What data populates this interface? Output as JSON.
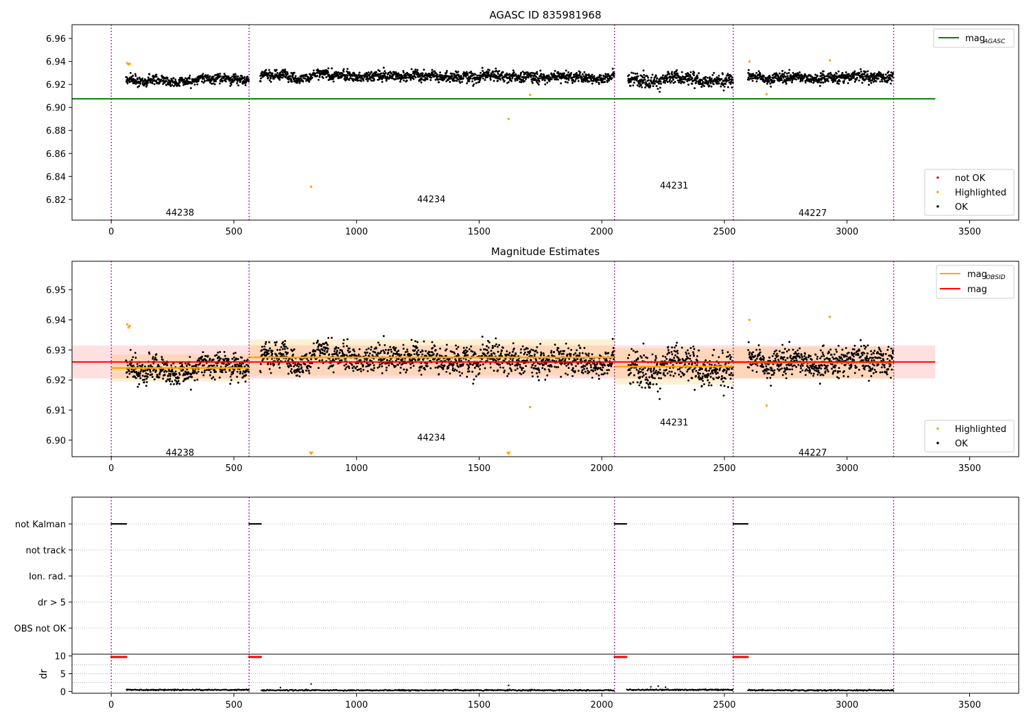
{
  "figure": {
    "width": 1500,
    "height": 1050
  },
  "chart_data": [
    {
      "id": "panel1",
      "type": "scatter",
      "title": "AGASC ID 835981968",
      "xlim": [
        -160,
        3700
      ],
      "ylim": [
        6.802,
        6.972
      ],
      "xticks": [
        0,
        500,
        1000,
        1500,
        2000,
        2500,
        3000,
        3500
      ],
      "yticks": [
        6.82,
        6.84,
        6.86,
        6.88,
        6.9,
        6.92,
        6.94,
        6.96
      ],
      "ytick_decimals": 2,
      "obsid_boundaries": [
        0,
        562,
        2052,
        2536,
        3190
      ],
      "obsids": [
        {
          "label": "44238",
          "x": 280,
          "y": 6.809,
          "start": 0,
          "end": 562,
          "level": 6.9245,
          "amp": 0.0032,
          "gap": 60
        },
        {
          "label": "44234",
          "x": 1305,
          "y": 6.8205,
          "start": 562,
          "end": 2052,
          "level": 6.9275,
          "amp": 0.0035,
          "gap": 45
        },
        {
          "label": "44231",
          "x": 2295,
          "y": 6.8325,
          "start": 2052,
          "end": 2536,
          "level": 6.9245,
          "amp": 0.0045,
          "gap": 55
        },
        {
          "label": "44227",
          "x": 2860,
          "y": 6.8085,
          "start": 2536,
          "end": 3190,
          "level": 6.9265,
          "amp": 0.0035,
          "gap": 60
        }
      ],
      "ref_lines": [
        {
          "name": "mag_AGASC",
          "y": 6.9075,
          "x0": -160,
          "x1": 3360,
          "color": "#008000"
        }
      ],
      "highlighted": [
        {
          "x": 65,
          "y": 6.9385
        },
        {
          "x": 70,
          "y": 6.9375
        },
        {
          "x": 75,
          "y": 6.938
        },
        {
          "x": 815,
          "y": 6.831
        },
        {
          "x": 1620,
          "y": 6.89
        },
        {
          "x": 1708,
          "y": 6.911
        },
        {
          "x": 2602,
          "y": 6.94
        },
        {
          "x": 2672,
          "y": 6.9115
        },
        {
          "x": 2930,
          "y": 6.941
        }
      ],
      "legend_upper": [
        {
          "label": "mag",
          "sub": "AGASC",
          "kind": "line",
          "color": "#008000"
        }
      ],
      "legend_lower": [
        {
          "label": "not OK",
          "kind": "dot",
          "color": "#ff0000"
        },
        {
          "label": "Highlighted",
          "kind": "dot",
          "color": "#ffa500"
        },
        {
          "label": "OK",
          "kind": "dot",
          "color": "#000000"
        }
      ]
    },
    {
      "id": "panel2",
      "type": "scatter",
      "title": "Magnitude Estimates",
      "xlim": [
        -160,
        3700
      ],
      "ylim": [
        6.8945,
        6.9595
      ],
      "xticks": [
        0,
        500,
        1000,
        1500,
        2000,
        2500,
        3000,
        3500
      ],
      "yticks": [
        6.9,
        6.91,
        6.92,
        6.93,
        6.94,
        6.95
      ],
      "ytick_decimals": 2,
      "obsid_boundaries": [
        0,
        562,
        2052,
        2536,
        3190
      ],
      "obsids": [
        {
          "label": "44238",
          "x": 280,
          "y": 6.896,
          "start": 0,
          "end": 562,
          "level": 6.9245,
          "amp": 0.0032,
          "gap": 60
        },
        {
          "label": "44234",
          "x": 1305,
          "y": 6.901,
          "start": 562,
          "end": 2052,
          "level": 6.9275,
          "amp": 0.0035,
          "gap": 45
        },
        {
          "label": "44231",
          "x": 2295,
          "y": 6.906,
          "start": 2052,
          "end": 2536,
          "level": 6.9245,
          "amp": 0.0045,
          "gap": 55
        },
        {
          "label": "44227",
          "x": 2860,
          "y": 6.896,
          "start": 2536,
          "end": 3190,
          "level": 6.9265,
          "amp": 0.0035,
          "gap": 60
        }
      ],
      "mag_line": {
        "y": 6.926,
        "x0": -160,
        "x1": 3360,
        "band": [
          6.9205,
          6.9315
        ],
        "color": "#ff0000"
      },
      "obsid_mags": [
        {
          "x0": 0,
          "x1": 562,
          "y": 6.924,
          "band": [
            6.9195,
            6.9285
          ]
        },
        {
          "x0": 562,
          "x1": 2052,
          "y": 6.9275,
          "band": [
            6.9215,
            6.9335
          ]
        },
        {
          "x0": 2052,
          "x1": 2536,
          "y": 6.9245,
          "band": [
            6.9185,
            6.9305
          ]
        },
        {
          "x0": 2536,
          "x1": 3190,
          "y": 6.9258,
          "band": [
            6.9205,
            6.931
          ]
        }
      ],
      "highlighted": [
        {
          "x": 65,
          "y": 6.9385
        },
        {
          "x": 70,
          "y": 6.9375
        },
        {
          "x": 75,
          "y": 6.938
        },
        {
          "x": 1708,
          "y": 6.911
        },
        {
          "x": 2602,
          "y": 6.94
        },
        {
          "x": 2672,
          "y": 6.9115
        },
        {
          "x": 2930,
          "y": 6.941
        }
      ],
      "offscale_markers": [
        {
          "x": 815,
          "y": 6.8955
        },
        {
          "x": 1620,
          "y": 6.8955
        }
      ],
      "legend_upper": [
        {
          "label": "mag",
          "sub": "OBSID",
          "kind": "line",
          "color": "#ffa500"
        },
        {
          "label": "mag",
          "sub": "",
          "kind": "line",
          "color": "#ff0000"
        }
      ],
      "legend_lower": [
        {
          "label": "Highlighted",
          "kind": "dot",
          "color": "#ffa500"
        },
        {
          "label": "OK",
          "kind": "dot",
          "color": "#000000"
        }
      ]
    },
    {
      "id": "panel3",
      "type": "scatter",
      "xlim": [
        -160,
        3700
      ],
      "flag_rows": [
        "not Kalman",
        "not track",
        "Ion. rad.",
        "dr > 5",
        "OBS not OK"
      ],
      "flag_segments": [
        {
          "row": "not Kalman",
          "x0": 0,
          "x1": 62
        },
        {
          "row": "not Kalman",
          "x0": 562,
          "x1": 612
        },
        {
          "row": "not Kalman",
          "x0": 2052,
          "x1": 2102
        },
        {
          "row": "not Kalman",
          "x0": 2536,
          "x1": 2596
        }
      ],
      "obsid_boundaries": [
        0,
        562,
        2052,
        2536,
        3190
      ]
    },
    {
      "id": "panel4",
      "type": "scatter",
      "ylabel": "dr",
      "xlim": [
        -160,
        3700
      ],
      "ylim": [
        -0.5,
        10.5
      ],
      "xticks": [
        0,
        500,
        1000,
        1500,
        2000,
        2500,
        3000,
        3500
      ],
      "yticks": [
        0,
        5,
        10
      ],
      "ytick_decimals": 0,
      "obsid_boundaries": [
        0,
        562,
        2052,
        2536,
        3190
      ],
      "clipped_segments": [
        {
          "x0": 0,
          "x1": 62,
          "y": 9.7
        },
        {
          "x0": 562,
          "x1": 612,
          "y": 9.7
        },
        {
          "x0": 2052,
          "x1": 2102,
          "y": 9.7
        },
        {
          "x0": 2536,
          "x1": 2596,
          "y": 9.7
        }
      ],
      "dr_segments": [
        {
          "x0": 62,
          "x1": 562,
          "base": 0.45
        },
        {
          "x0": 612,
          "x1": 2052,
          "base": 0.35
        },
        {
          "x0": 2102,
          "x1": 2536,
          "base": 0.45
        },
        {
          "x0": 2596,
          "x1": 3190,
          "base": 0.35
        }
      ],
      "dr_bumps": [
        {
          "x": 690,
          "y": 1.1
        },
        {
          "x": 815,
          "y": 2.1
        },
        {
          "x": 1620,
          "y": 1.7
        },
        {
          "x": 2200,
          "y": 1.3
        },
        {
          "x": 2230,
          "y": 1.5
        },
        {
          "x": 2260,
          "y": 1.2
        }
      ]
    }
  ]
}
